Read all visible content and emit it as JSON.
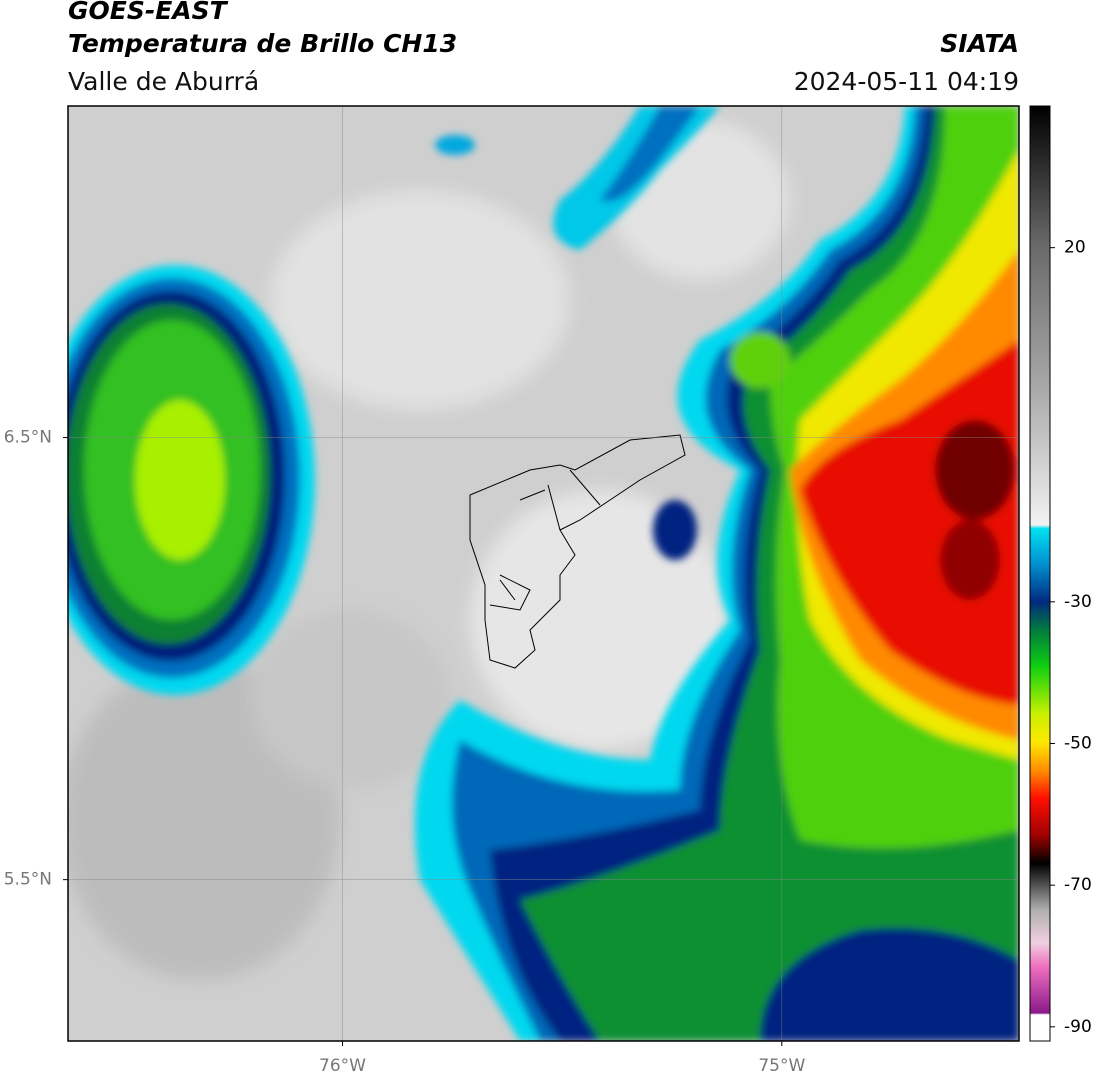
{
  "header": {
    "title": "GOES-EAST",
    "subtitle": "Temperatura de Brillo CH13",
    "region": "Valle de Aburrá",
    "source": "SIATA",
    "datetime": "2024-05-11 04:19"
  },
  "map": {
    "xlim": [
      -76.625,
      -74.46
    ],
    "ylim": [
      5.135,
      7.25
    ],
    "xticks": [
      {
        "value": -76,
        "label": "76°W"
      },
      {
        "value": -75,
        "label": "75°W"
      }
    ],
    "yticks": [
      {
        "value": 5.5,
        "label": "5.5°N"
      },
      {
        "value": 6.5,
        "label": "6.5°N"
      }
    ],
    "grid": true
  },
  "colorbar": {
    "lim": [
      -92,
      40
    ],
    "ticks": [
      -90,
      -70,
      -50,
      -30,
      20
    ]
  }
}
